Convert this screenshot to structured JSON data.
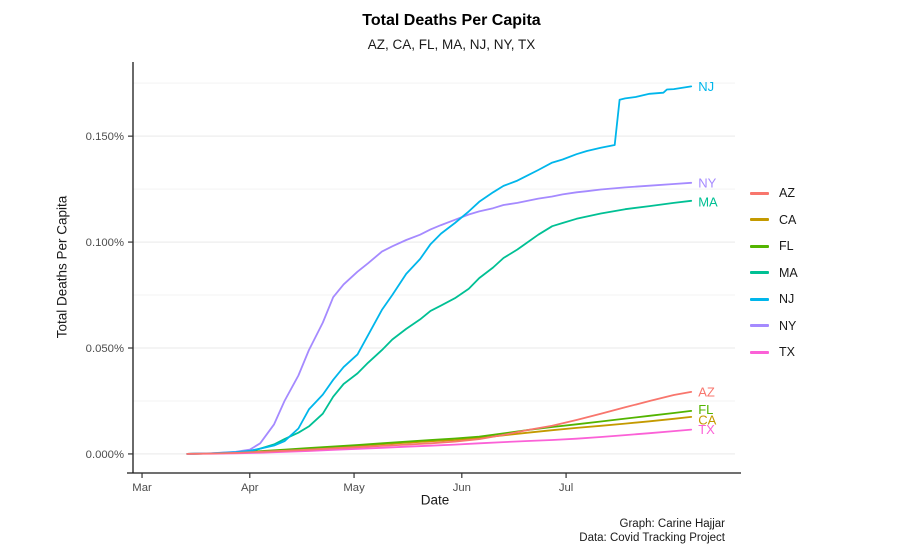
{
  "chart_data": {
    "type": "line",
    "title": "Total Deaths Per Capita",
    "subtitle": "AZ, CA, FL, MA, NJ, NY, TX",
    "xlabel": "Date",
    "ylabel": "Total Deaths Per Capita",
    "caption": [
      "Graph: Carine Hajjar",
      "Data: Covid Tracking Project"
    ],
    "legend_position": "right",
    "grid": "horizontal major and minor only",
    "x_unit": "days since Mar 1, 2020",
    "xlim": [
      -2.6,
      170.6
    ],
    "ylim": [
      -0.009,
      0.185
    ],
    "x_ticks": [
      {
        "day": 0,
        "label": "Mar"
      },
      {
        "day": 31,
        "label": "Apr"
      },
      {
        "day": 61,
        "label": "May"
      },
      {
        "day": 92,
        "label": "Jun"
      },
      {
        "day": 122,
        "label": "Jul"
      }
    ],
    "y_ticks": [
      {
        "value": 0.0,
        "label": "0.000%"
      },
      {
        "value": 0.05,
        "label": "0.050%"
      },
      {
        "value": 0.1,
        "label": "0.100%"
      },
      {
        "value": 0.15,
        "label": "0.150%"
      }
    ],
    "y_minor": [
      0.025,
      0.075,
      0.125,
      0.175
    ],
    "series": [
      {
        "name": "AZ",
        "color": "#F8766D",
        "label_dy": 0,
        "points": [
          [
            13,
            0
          ],
          [
            20,
            0.0002
          ],
          [
            27,
            0.0005
          ],
          [
            34,
            0.001
          ],
          [
            41,
            0.0015
          ],
          [
            48,
            0.002
          ],
          [
            55,
            0.0026
          ],
          [
            62,
            0.0032
          ],
          [
            69,
            0.0038
          ],
          [
            76,
            0.0044
          ],
          [
            83,
            0.005
          ],
          [
            90,
            0.0058
          ],
          [
            97,
            0.007
          ],
          [
            104,
            0.009
          ],
          [
            111,
            0.0113
          ],
          [
            118,
            0.0133
          ],
          [
            125,
            0.016
          ],
          [
            132,
            0.019
          ],
          [
            139,
            0.022
          ],
          [
            146,
            0.025
          ],
          [
            153,
            0.0278
          ],
          [
            158,
            0.0293
          ]
        ]
      },
      {
        "name": "CA",
        "color": "#C49A00",
        "label_dy": 3,
        "points": [
          [
            13,
            0
          ],
          [
            20,
            0.0002
          ],
          [
            27,
            0.0005
          ],
          [
            34,
            0.0011
          ],
          [
            41,
            0.0018
          ],
          [
            48,
            0.0025
          ],
          [
            55,
            0.0032
          ],
          [
            62,
            0.0039
          ],
          [
            69,
            0.0046
          ],
          [
            76,
            0.0053
          ],
          [
            83,
            0.006
          ],
          [
            90,
            0.0066
          ],
          [
            97,
            0.0075
          ],
          [
            104,
            0.0088
          ],
          [
            111,
            0.01
          ],
          [
            118,
            0.0112
          ],
          [
            125,
            0.0123
          ],
          [
            132,
            0.0133
          ],
          [
            139,
            0.0143
          ],
          [
            146,
            0.0154
          ],
          [
            153,
            0.0166
          ],
          [
            158,
            0.0175
          ]
        ]
      },
      {
        "name": "FL",
        "color": "#53B400",
        "label_dy": -1.5,
        "points": [
          [
            13,
            0
          ],
          [
            20,
            0.0002
          ],
          [
            27,
            0.0006
          ],
          [
            34,
            0.0013
          ],
          [
            41,
            0.002
          ],
          [
            48,
            0.0028
          ],
          [
            55,
            0.0035
          ],
          [
            62,
            0.0042
          ],
          [
            69,
            0.005
          ],
          [
            76,
            0.0058
          ],
          [
            83,
            0.0066
          ],
          [
            90,
            0.0073
          ],
          [
            97,
            0.0082
          ],
          [
            104,
            0.0097
          ],
          [
            111,
            0.0113
          ],
          [
            118,
            0.0127
          ],
          [
            125,
            0.014
          ],
          [
            132,
            0.0153
          ],
          [
            139,
            0.0167
          ],
          [
            146,
            0.018
          ],
          [
            153,
            0.0193
          ],
          [
            158,
            0.0203
          ]
        ]
      },
      {
        "name": "MA",
        "color": "#00C094",
        "label_dy": 1,
        "points": [
          [
            13,
            0
          ],
          [
            20,
            0.0002
          ],
          [
            27,
            0.0006
          ],
          [
            31,
            0.0012
          ],
          [
            34,
            0.0025
          ],
          [
            38,
            0.0045
          ],
          [
            41,
            0.007
          ],
          [
            45,
            0.01
          ],
          [
            48,
            0.013
          ],
          [
            52,
            0.019
          ],
          [
            55,
            0.027
          ],
          [
            58,
            0.033
          ],
          [
            62,
            0.038
          ],
          [
            65,
            0.043
          ],
          [
            69,
            0.049
          ],
          [
            72,
            0.054
          ],
          [
            76,
            0.059
          ],
          [
            80,
            0.0635
          ],
          [
            83,
            0.0675
          ],
          [
            86,
            0.07
          ],
          [
            90,
            0.0735
          ],
          [
            94,
            0.078
          ],
          [
            97,
            0.083
          ],
          [
            101,
            0.088
          ],
          [
            104,
            0.0925
          ],
          [
            108,
            0.0965
          ],
          [
            111,
            0.1
          ],
          [
            114,
            0.1035
          ],
          [
            118,
            0.1075
          ],
          [
            121,
            0.109
          ],
          [
            125,
            0.111
          ],
          [
            132,
            0.1135
          ],
          [
            139,
            0.1155
          ],
          [
            146,
            0.117
          ],
          [
            153,
            0.1185
          ],
          [
            158,
            0.1195
          ]
        ]
      },
      {
        "name": "NJ",
        "color": "#00B6EB",
        "label_dy": 0,
        "points": [
          [
            13,
            0
          ],
          [
            20,
            0.0003
          ],
          [
            27,
            0.0008
          ],
          [
            31,
            0.0015
          ],
          [
            34,
            0.0025
          ],
          [
            38,
            0.004
          ],
          [
            41,
            0.006
          ],
          [
            45,
            0.012
          ],
          [
            48,
            0.021
          ],
          [
            52,
            0.028
          ],
          [
            55,
            0.035
          ],
          [
            58,
            0.041
          ],
          [
            62,
            0.047
          ],
          [
            65,
            0.056
          ],
          [
            69,
            0.068
          ],
          [
            72,
            0.075
          ],
          [
            76,
            0.085
          ],
          [
            80,
            0.092
          ],
          [
            83,
            0.099
          ],
          [
            86,
            0.104
          ],
          [
            90,
            0.109
          ],
          [
            94,
            0.1145
          ],
          [
            97,
            0.119
          ],
          [
            101,
            0.1235
          ],
          [
            104,
            0.1265
          ],
          [
            108,
            0.129
          ],
          [
            111,
            0.1315
          ],
          [
            114,
            0.134
          ],
          [
            118,
            0.1375
          ],
          [
            121,
            0.139
          ],
          [
            125,
            0.1415
          ],
          [
            128,
            0.143
          ],
          [
            132,
            0.1445
          ],
          [
            136,
            0.1458
          ],
          [
            137.4,
            0.1672
          ],
          [
            139,
            0.1678
          ],
          [
            142,
            0.1685
          ],
          [
            146,
            0.17
          ],
          [
            150,
            0.1705
          ],
          [
            151,
            0.172
          ],
          [
            153,
            0.1722
          ],
          [
            158,
            0.1735
          ]
        ]
      },
      {
        "name": "NY",
        "color": "#A58AFF",
        "label_dy": 0,
        "points": [
          [
            13,
            0
          ],
          [
            20,
            0.0003
          ],
          [
            27,
            0.001
          ],
          [
            31,
            0.002
          ],
          [
            34,
            0.005
          ],
          [
            38,
            0.014
          ],
          [
            41,
            0.025
          ],
          [
            45,
            0.037
          ],
          [
            48,
            0.049
          ],
          [
            52,
            0.062
          ],
          [
            55,
            0.074
          ],
          [
            58,
            0.08
          ],
          [
            62,
            0.086
          ],
          [
            65,
            0.09
          ],
          [
            69,
            0.0955
          ],
          [
            72,
            0.098
          ],
          [
            76,
            0.101
          ],
          [
            80,
            0.1035
          ],
          [
            83,
            0.106
          ],
          [
            86,
            0.108
          ],
          [
            90,
            0.1105
          ],
          [
            94,
            0.113
          ],
          [
            97,
            0.1145
          ],
          [
            101,
            0.116
          ],
          [
            104,
            0.1175
          ],
          [
            108,
            0.1185
          ],
          [
            111,
            0.1195
          ],
          [
            114,
            0.1205
          ],
          [
            118,
            0.1215
          ],
          [
            121,
            0.1225
          ],
          [
            125,
            0.1235
          ],
          [
            128,
            0.124
          ],
          [
            132,
            0.1248
          ],
          [
            139,
            0.1258
          ],
          [
            146,
            0.1266
          ],
          [
            153,
            0.1274
          ],
          [
            158,
            0.128
          ]
        ]
      },
      {
        "name": "TX",
        "color": "#FB61D7",
        "label_dy": 0,
        "points": [
          [
            13,
            0
          ],
          [
            20,
            0.0001
          ],
          [
            27,
            0.0003
          ],
          [
            34,
            0.0006
          ],
          [
            41,
            0.001
          ],
          [
            48,
            0.0014
          ],
          [
            55,
            0.0019
          ],
          [
            62,
            0.0024
          ],
          [
            69,
            0.0029
          ],
          [
            76,
            0.0034
          ],
          [
            83,
            0.0039
          ],
          [
            90,
            0.0044
          ],
          [
            97,
            0.005
          ],
          [
            104,
            0.0056
          ],
          [
            111,
            0.0061
          ],
          [
            118,
            0.0066
          ],
          [
            125,
            0.0072
          ],
          [
            132,
            0.008
          ],
          [
            139,
            0.0089
          ],
          [
            146,
            0.0098
          ],
          [
            153,
            0.0108
          ],
          [
            158,
            0.0115
          ]
        ]
      }
    ]
  }
}
